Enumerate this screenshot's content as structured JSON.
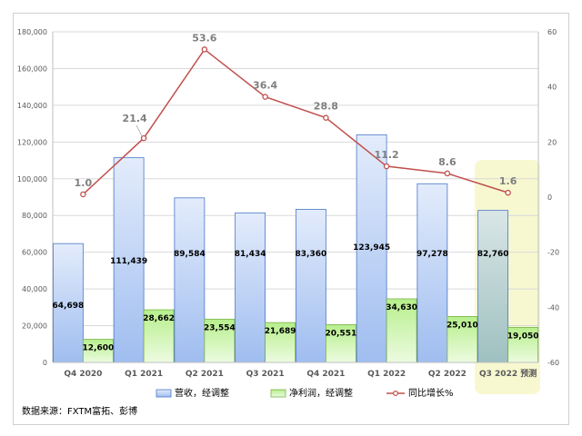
{
  "chart_data": {
    "type": "bar",
    "categories": [
      "Q4 2020",
      "Q1 2021",
      "Q2 2021",
      "Q3 2021",
      "Q4 2021",
      "Q1 2022",
      "Q2 2022",
      "Q3 2022 预测"
    ],
    "series": [
      {
        "name": "营收，经调整",
        "kind": "bar",
        "axis": "left",
        "values": [
          64698,
          111439,
          89584,
          81434,
          83360,
          123945,
          97278,
          82760
        ]
      },
      {
        "name": "净利润，经调整",
        "kind": "bar",
        "axis": "left",
        "values": [
          12600,
          28662,
          23554,
          21689,
          20551,
          34630,
          25010,
          19050
        ]
      },
      {
        "name": "同比增长%",
        "kind": "line",
        "axis": "right",
        "values": [
          1.0,
          21.4,
          53.6,
          36.4,
          28.8,
          11.2,
          8.6,
          1.6
        ]
      }
    ],
    "ylim": [
      0,
      180000
    ],
    "yticks": [
      "0",
      "20,000",
      "40,000",
      "60,000",
      "80,000",
      "100,000",
      "120,000",
      "140,000",
      "160,000",
      "180,000"
    ],
    "y2lim": [
      -60,
      60
    ],
    "y2ticks": [
      "-60",
      "-40",
      "-20",
      "0",
      "20",
      "40",
      "60"
    ],
    "legend": "bottom",
    "grid": true,
    "highlight_category": "Q3 2022 预测",
    "colors": {
      "revenue_bar": "#a9c4f0",
      "profit_bar": "#c8f3a0",
      "line": "#c0504d",
      "highlight": "#f6f7c8"
    }
  },
  "source": "数据来源：FXTM富拓、彭博"
}
